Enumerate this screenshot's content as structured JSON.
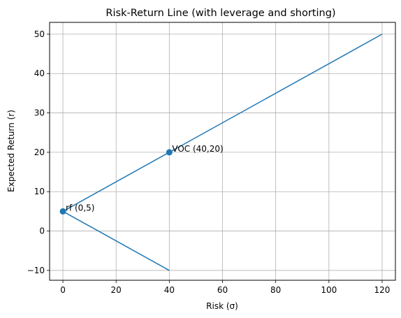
{
  "chart_data": {
    "type": "line",
    "title": "Risk-Return Line (with leverage and shorting)",
    "xlabel": "Risk (σ)",
    "ylabel": "Expected Return (r)",
    "xlim": [
      -5,
      125
    ],
    "ylim": [
      -12.5,
      53
    ],
    "xticks": [
      0,
      20,
      40,
      60,
      80,
      100,
      120
    ],
    "yticks": [
      -10,
      0,
      10,
      20,
      30,
      40,
      50
    ],
    "grid": true,
    "color": "#1f77b4",
    "series": [
      {
        "x": [
          0,
          120
        ],
        "y": [
          5,
          50
        ]
      },
      {
        "x": [
          0,
          40
        ],
        "y": [
          5,
          -10
        ]
      }
    ],
    "points": [
      {
        "x": 0,
        "y": 5,
        "label": "rf (0,5)"
      },
      {
        "x": 40,
        "y": 20,
        "label": "VOC (40,20)"
      }
    ]
  }
}
